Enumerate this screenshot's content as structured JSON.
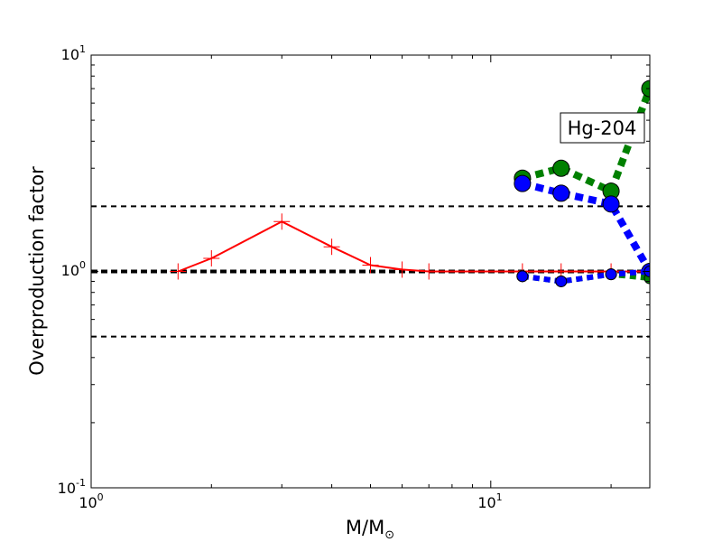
{
  "chart_data": {
    "type": "line",
    "xscale": "log",
    "yscale": "log",
    "xlim": [
      1,
      25
    ],
    "ylim": [
      0.1,
      10
    ],
    "xlabel": "M/M",
    "xlabel_sub": "⊙",
    "ylabel": "Overproduction factor",
    "x_tick_labels": [
      {
        "value": 1,
        "base": "10",
        "exp": "0"
      },
      {
        "value": 10,
        "base": "10",
        "exp": "1"
      }
    ],
    "y_tick_labels": [
      {
        "value": 0.1,
        "base": "10",
        "exp": "-1"
      },
      {
        "value": 1,
        "base": "10",
        "exp": "0"
      },
      {
        "value": 10,
        "base": "10",
        "exp": "1"
      }
    ],
    "annotation": "Hg-204",
    "reference_lines": [
      {
        "y": 2.0,
        "style": "dashed",
        "color": "#000000"
      },
      {
        "y": 1.0,
        "style": "dashed-thick",
        "color": "#000000"
      },
      {
        "y": 0.5,
        "style": "dashed",
        "color": "#000000"
      }
    ],
    "series": [
      {
        "color": "#ff0000",
        "style": "solid",
        "marker": "plus",
        "x": [
          1.65,
          2.0,
          3.0,
          4.0,
          5.0,
          6.0,
          7.0,
          12.0,
          15.0,
          20.0,
          25.0
        ],
        "y": [
          1.0,
          1.15,
          1.7,
          1.3,
          1.07,
          1.02,
          1.0,
          1.0,
          1.0,
          1.0,
          1.0
        ]
      },
      {
        "color": "#008000",
        "style": "dotted",
        "marker": "circle-large",
        "x": [
          12.0,
          15.0,
          20.0,
          25.0
        ],
        "y": [
          2.7,
          3.0,
          2.35,
          7.0
        ]
      },
      {
        "color": "#0000ff",
        "style": "dotted",
        "marker": "circle-large",
        "x": [
          12.0,
          15.0,
          20.0,
          25.0
        ],
        "y": [
          2.55,
          2.3,
          2.05,
          1.0
        ]
      },
      {
        "color": "#008000",
        "style": "dotted",
        "marker": "circle-small",
        "x": [
          12.0,
          15.0,
          20.0,
          25.0
        ],
        "y": [
          0.95,
          0.9,
          0.97,
          0.93
        ]
      },
      {
        "color": "#0000ff",
        "style": "dotted",
        "marker": "circle-small",
        "x": [
          12.0,
          15.0,
          20.0,
          25.0
        ],
        "y": [
          0.95,
          0.9,
          0.97,
          1.0
        ]
      }
    ]
  }
}
